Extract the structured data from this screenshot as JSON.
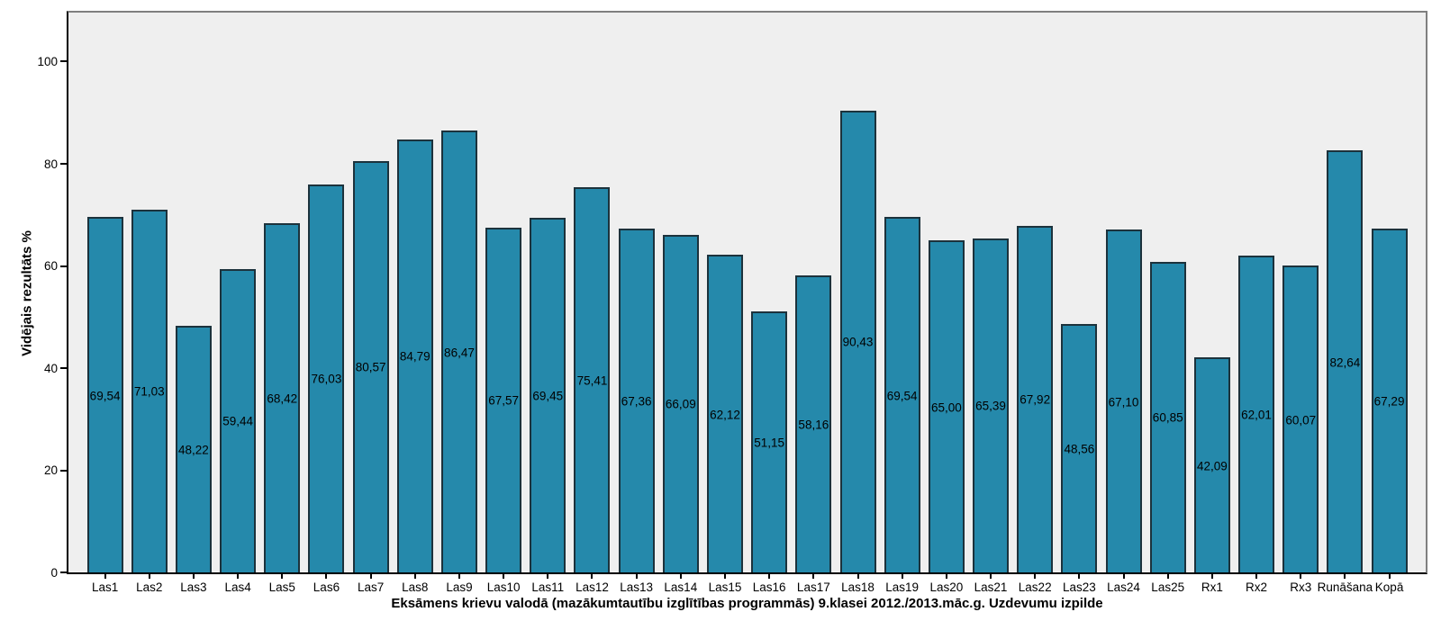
{
  "chart_data": {
    "type": "bar",
    "title": "",
    "xlabel": "Eksāmens krievu valodā (mazākumtautību izglītības programmās) 9.klasei 2012./2013.māc.g. Uzdevumu izpilde",
    "ylabel": "Vidējais rezultāts %",
    "categories": [
      "Las1",
      "Las2",
      "Las3",
      "Las4",
      "Las5",
      "Las6",
      "Las7",
      "Las8",
      "Las9",
      "Las10",
      "Las11",
      "Las12",
      "Las13",
      "Las14",
      "Las15",
      "Las16",
      "Las17",
      "Las18",
      "Las19",
      "Las20",
      "Las21",
      "Las22",
      "Las23",
      "Las24",
      "Las25",
      "Rx1",
      "Rx2",
      "Rx3",
      "Runāšana",
      "Kopā"
    ],
    "values": [
      69.54,
      71.03,
      48.22,
      59.44,
      68.42,
      76.03,
      80.57,
      84.79,
      86.47,
      67.57,
      69.45,
      75.41,
      67.36,
      66.09,
      62.12,
      51.15,
      58.16,
      90.43,
      69.54,
      65.0,
      65.39,
      67.92,
      48.56,
      67.1,
      60.85,
      42.09,
      62.01,
      60.07,
      82.64,
      67.29
    ],
    "value_labels": [
      "69,54",
      "71,03",
      "48,22",
      "59,44",
      "68,42",
      "76,03",
      "80,57",
      "84,79",
      "86,47",
      "67,57",
      "69,45",
      "75,41",
      "67,36",
      "66,09",
      "62,12",
      "51,15",
      "58,16",
      "90,43",
      "69,54",
      "65,00",
      "65,39",
      "67,92",
      "48,56",
      "67,10",
      "60,85",
      "42,09",
      "62,01",
      "60,07",
      "82,64",
      "67,29"
    ],
    "yticks": [
      0,
      20,
      40,
      60,
      80,
      100
    ],
    "ylim": [
      0,
      109.6
    ],
    "grid": false,
    "legend": null,
    "colors": {
      "bar_fill": "#2589ab",
      "bar_border": "#1c323c",
      "plot_background": "#efefef",
      "outer_background": "#ffffff",
      "axis": "#000000",
      "frame": "#7f7f7f",
      "text": "#000000"
    }
  }
}
